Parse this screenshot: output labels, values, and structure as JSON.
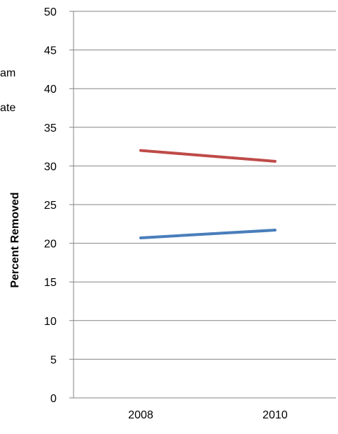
{
  "chart_data": {
    "type": "line",
    "categories": [
      "2008",
      "2010"
    ],
    "series": [
      {
        "values": [
          20.7,
          21.7
        ],
        "color": "#4a7ebb"
      },
      {
        "values": [
          32.0,
          30.6
        ],
        "color": "#be4b48"
      }
    ],
    "ylabel": "Percent Removed",
    "xlabel": "",
    "ylim": [
      0,
      50
    ],
    "yticks": [
      0,
      5,
      10,
      15,
      20,
      25,
      30,
      35,
      40,
      45,
      50
    ],
    "grid": true,
    "legend": {
      "position": "left",
      "visible_text": [
        "am",
        "ate"
      ]
    }
  }
}
